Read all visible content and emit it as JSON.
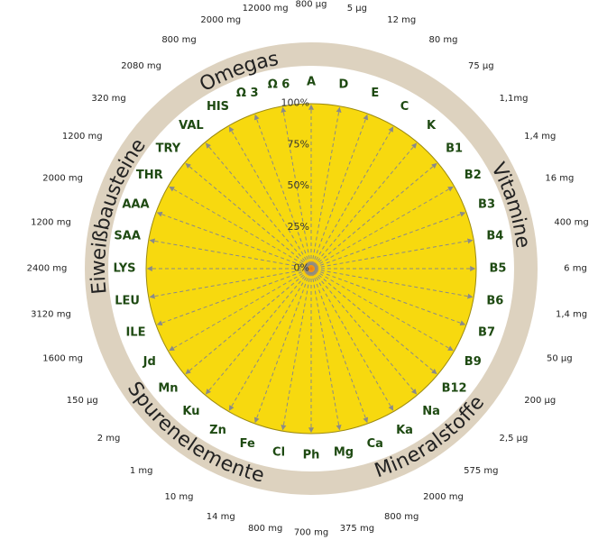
{
  "chart_data": {
    "type": "radar",
    "levels": [
      "0%",
      "25%",
      "50%",
      "75%",
      "100%"
    ],
    "colors": {
      "fill": "#f7d90f",
      "ring": "#ddd2bf",
      "spoke": "#8a8a8a",
      "label": "#1e4a12"
    },
    "categories": [
      {
        "name": "A",
        "dose": "800 µg"
      },
      {
        "name": "D",
        "dose": "5 µg"
      },
      {
        "name": "E",
        "dose": "12 mg"
      },
      {
        "name": "C",
        "dose": "80 mg"
      },
      {
        "name": "K",
        "dose": "75 µg"
      },
      {
        "name": "B1",
        "dose": "1,1mg"
      },
      {
        "name": "B2",
        "dose": "1,4 mg"
      },
      {
        "name": "B3",
        "dose": "16 mg"
      },
      {
        "name": "B4",
        "dose": "400 mg"
      },
      {
        "name": "B5",
        "dose": "6 mg"
      },
      {
        "name": "B6",
        "dose": "1,4 mg"
      },
      {
        "name": "B7",
        "dose": "50 µg"
      },
      {
        "name": "B9",
        "dose": "200 µg"
      },
      {
        "name": "B12",
        "dose": "2,5 µg"
      },
      {
        "name": "Na",
        "dose": "575 mg"
      },
      {
        "name": "Ka",
        "dose": "2000 mg"
      },
      {
        "name": "Ca",
        "dose": "800 mg"
      },
      {
        "name": "Mg",
        "dose": "375 mg"
      },
      {
        "name": "Ph",
        "dose": "700 mg"
      },
      {
        "name": "Cl",
        "dose": "800 mg"
      },
      {
        "name": "Fe",
        "dose": "14 mg"
      },
      {
        "name": "Zn",
        "dose": "10 mg"
      },
      {
        "name": "Ku",
        "dose": "1 mg"
      },
      {
        "name": "Mn",
        "dose": "2 mg"
      },
      {
        "name": "Jd",
        "dose": "150 µg"
      },
      {
        "name": "ILE",
        "dose": "1600 mg"
      },
      {
        "name": "LEU",
        "dose": "3120 mg"
      },
      {
        "name": "LYS",
        "dose": "2400 mg"
      },
      {
        "name": "SAA",
        "dose": "1200 mg"
      },
      {
        "name": "AAA",
        "dose": "2000 mg"
      },
      {
        "name": "THR",
        "dose": "1200 mg"
      },
      {
        "name": "TRY",
        "dose": "320 mg"
      },
      {
        "name": "VAL",
        "dose": "2080 mg"
      },
      {
        "name": "HIS",
        "dose": "800 mg"
      },
      {
        "name": "Ω 3",
        "dose": "2000 mg"
      },
      {
        "name": "Ω 6",
        "dose": "12000 mg"
      }
    ],
    "groups": [
      "Vitamine",
      "Mineralstoffe",
      "Spurenelemente",
      "Eiweißbausteine",
      "Omegas"
    ]
  }
}
